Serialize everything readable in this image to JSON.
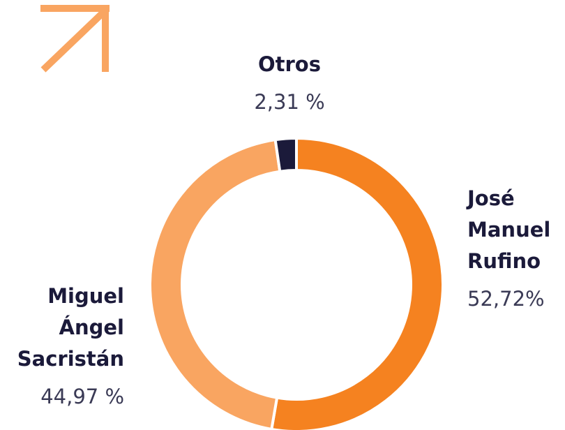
{
  "chart_data": {
    "type": "donut",
    "categories": [
      "José Manuel Rufino",
      "Miguel Ángel Sacristán",
      "Otros"
    ],
    "values": [
      52.72,
      44.97,
      2.31
    ],
    "value_labels": [
      "52,72%",
      "44,97 %",
      "2,31 %"
    ],
    "colors": [
      "#f58220",
      "#f9a561",
      "#1b1a3a"
    ]
  }
}
